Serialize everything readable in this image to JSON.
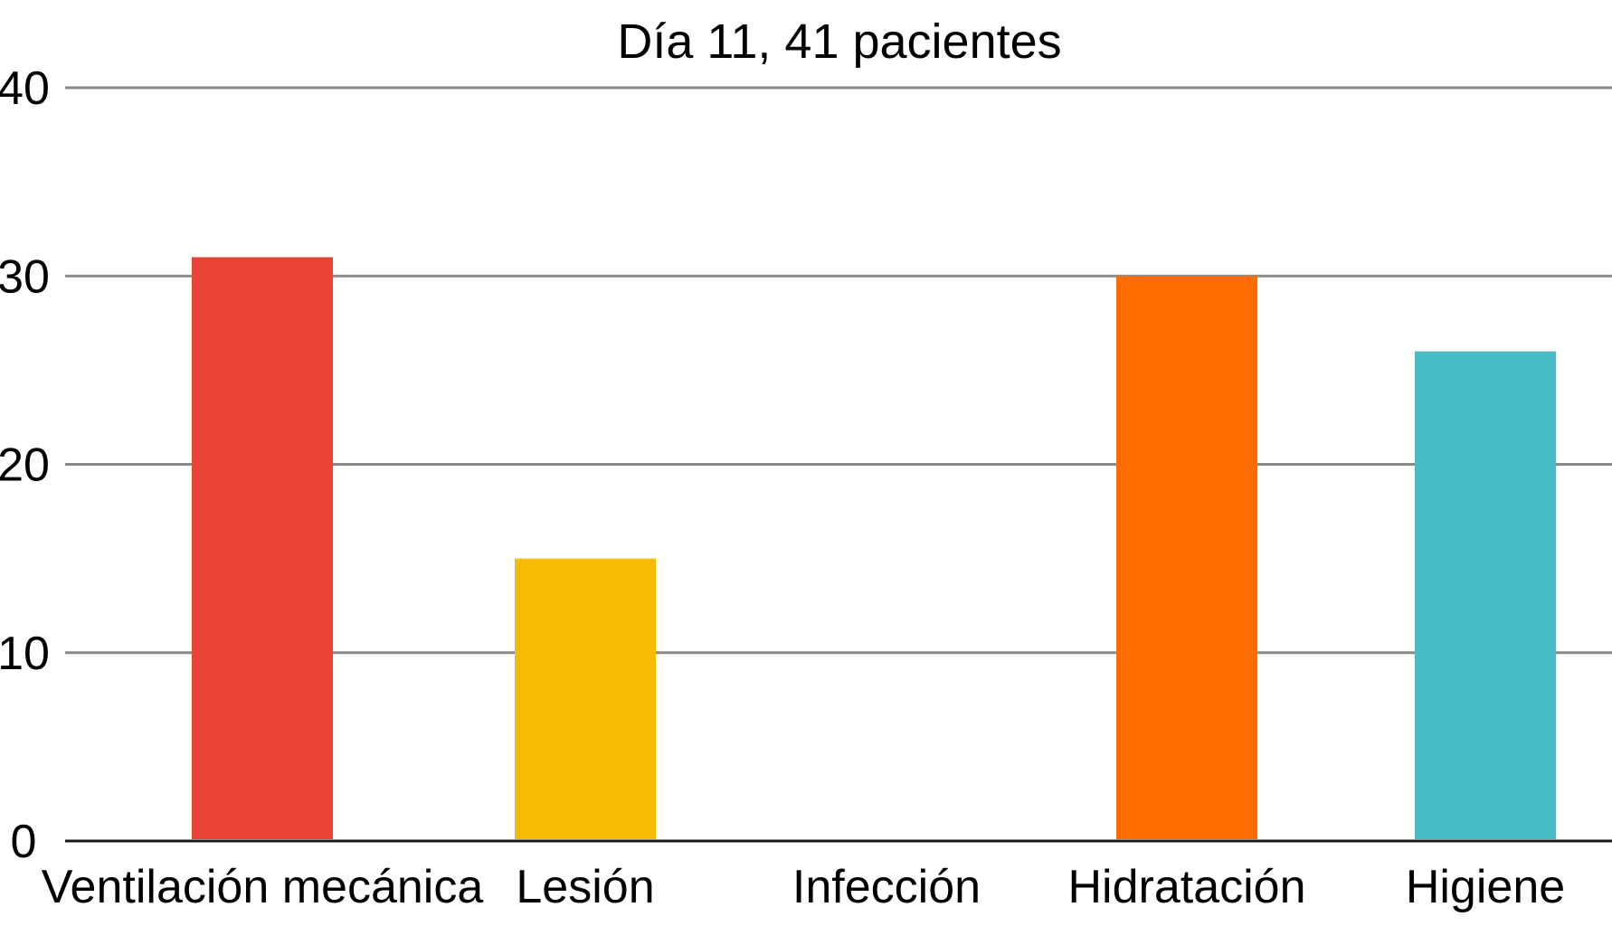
{
  "chart_data": {
    "type": "bar",
    "title": "Día 11, 41 pacientes",
    "xlabel": "",
    "ylabel": "",
    "ylim": [
      0,
      40
    ],
    "yticks": [
      0,
      10,
      20,
      30,
      40
    ],
    "grid": true,
    "legend": "none",
    "categories": [
      "Ventilación mecánica",
      "Lesión",
      "Infección",
      "Hidratación",
      "Higiene"
    ],
    "values": [
      31,
      15,
      0,
      30,
      26
    ],
    "colors": [
      "#e94335",
      "#f8bb04",
      "#999999",
      "#ff6d00",
      "#46bcc5"
    ]
  }
}
